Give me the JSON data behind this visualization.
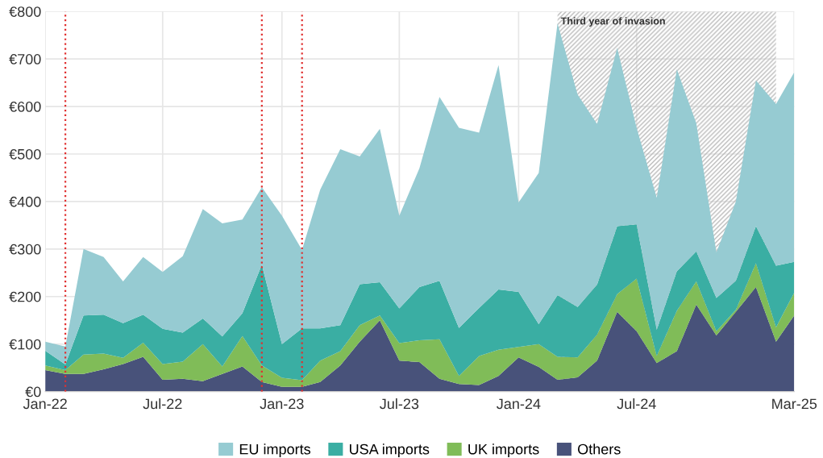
{
  "chart_data": {
    "type": "area",
    "stacked": true,
    "x": [
      "2022-01",
      "2022-02",
      "2022-03",
      "2022-04",
      "2022-05",
      "2022-06",
      "2022-07",
      "2022-08",
      "2022-09",
      "2022-10",
      "2022-11",
      "2022-12",
      "2023-01",
      "2023-02",
      "2023-03",
      "2023-04",
      "2023-05",
      "2023-06",
      "2023-07",
      "2023-08",
      "2023-09",
      "2023-10",
      "2023-11",
      "2023-12",
      "2024-01",
      "2024-02",
      "2024-03",
      "2024-04",
      "2024-05",
      "2024-06",
      "2024-07",
      "2024-08",
      "2024-09",
      "2024-10",
      "2024-11",
      "2024-12",
      "2025-01",
      "2025-02",
      "2025-03"
    ],
    "series": [
      {
        "name": "Others",
        "color": "#48527a",
        "values": [
          45,
          37,
          37,
          47,
          58,
          73,
          25,
          27,
          22,
          37,
          53,
          20,
          10,
          10,
          20,
          55,
          105,
          150,
          65,
          62,
          27,
          16,
          14,
          33,
          72,
          52,
          25,
          30,
          65,
          168,
          127,
          60,
          85,
          183,
          118,
          168,
          220,
          105,
          160
        ]
      },
      {
        "name": "UK imports",
        "color": "#80bc58",
        "values": [
          10,
          8,
          41,
          33,
          13,
          30,
          33,
          36,
          78,
          16,
          64,
          35,
          19,
          14,
          45,
          30,
          35,
          10,
          37,
          46,
          83,
          17,
          61,
          55,
          22,
          48,
          48,
          42,
          55,
          37,
          111,
          15,
          85,
          49,
          9,
          4,
          50,
          30,
          48
        ]
      },
      {
        "name": "USA imports",
        "color": "#3aaea3",
        "values": [
          31,
          12,
          82,
          82,
          73,
          59,
          74,
          61,
          54,
          63,
          48,
          212,
          71,
          109,
          68,
          55,
          86,
          70,
          73,
          112,
          123,
          101,
          101,
          127,
          116,
          42,
          130,
          106,
          105,
          143,
          114,
          55,
          83,
          63,
          70,
          61,
          78,
          130,
          65
        ]
      },
      {
        "name": "EU imports",
        "color": "#96cbd2",
        "values": [
          19,
          38,
          140,
          121,
          88,
          121,
          120,
          161,
          230,
          238,
          197,
          163,
          270,
          165,
          292,
          370,
          269,
          323,
          195,
          250,
          387,
          421,
          369,
          472,
          188,
          318,
          572,
          447,
          338,
          375,
          203,
          278,
          425,
          270,
          96,
          167,
          307,
          340,
          399
        ]
      }
    ],
    "xlim": [
      "2022-01",
      "2025-03"
    ],
    "xticks": [
      {
        "value": "2022-01",
        "label": "Jan-22"
      },
      {
        "value": "2022-07",
        "label": "Jul-22"
      },
      {
        "value": "2023-01",
        "label": "Jan-23"
      },
      {
        "value": "2023-07",
        "label": "Jul-23"
      },
      {
        "value": "2024-01",
        "label": "Jan-24"
      },
      {
        "value": "2024-07",
        "label": "Jul-24"
      },
      {
        "value": "2025-03",
        "label": "Mar-25"
      }
    ],
    "ylim": [
      0,
      800
    ],
    "yticks": [
      {
        "value": 0,
        "label": "€0"
      },
      {
        "value": 100,
        "label": "€100"
      },
      {
        "value": 200,
        "label": "€200"
      },
      {
        "value": 300,
        "label": "€300"
      },
      {
        "value": 400,
        "label": "€400"
      },
      {
        "value": 500,
        "label": "€500"
      },
      {
        "value": 600,
        "label": "€600"
      },
      {
        "value": 700,
        "label": "€700"
      },
      {
        "value": 800,
        "label": "€800"
      }
    ],
    "ref_lines": [
      {
        "axis": "x",
        "value": "2022-02",
        "color": "#e03030",
        "line_style": "dotted"
      },
      {
        "axis": "x",
        "value": "2022-12",
        "color": "#e03030",
        "line_style": "dotted"
      },
      {
        "axis": "x",
        "value": "2023-02",
        "color": "#e03030",
        "line_style": "dotted"
      }
    ],
    "bands": [
      {
        "axis": "x",
        "from": "2024-03",
        "to": "2025-02",
        "label": "Third year of invasion",
        "color": "#bbbbbb"
      }
    ],
    "grid": true,
    "legend": "bottom"
  }
}
